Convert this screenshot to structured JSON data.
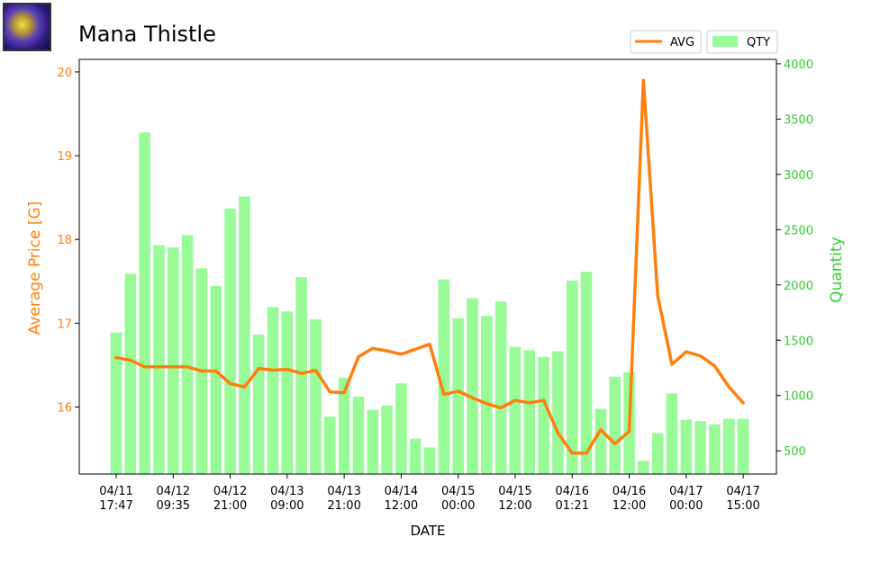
{
  "header": {
    "icon_name": "mana-thistle-item-icon",
    "title": "Mana Thistle"
  },
  "chart_data": {
    "type": "bar",
    "title": "Mana Thistle",
    "xlabel": "DATE",
    "ylabel_left": "Average Price [G]",
    "ylabel_right": "Quantity",
    "ylim_left": [
      15.2,
      20.15
    ],
    "ylim_right": [
      290,
      4040
    ],
    "yticks_left": [
      16,
      17,
      18,
      19,
      20
    ],
    "yticks_right": [
      500,
      1000,
      1500,
      2000,
      2500,
      3000,
      3500,
      4000
    ],
    "xticks": [
      {
        "index": 0,
        "line1": "04/11",
        "line2": "17:47"
      },
      {
        "index": 4,
        "line1": "04/12",
        "line2": "09:35"
      },
      {
        "index": 8,
        "line1": "04/12",
        "line2": "21:00"
      },
      {
        "index": 12,
        "line1": "04/13",
        "line2": "09:00"
      },
      {
        "index": 16,
        "line1": "04/13",
        "line2": "21:00"
      },
      {
        "index": 20,
        "line1": "04/14",
        "line2": "12:00"
      },
      {
        "index": 24,
        "line1": "04/15",
        "line2": "00:00"
      },
      {
        "index": 28,
        "line1": "04/15",
        "line2": "12:00"
      },
      {
        "index": 32,
        "line1": "04/16",
        "line2": "01:21"
      },
      {
        "index": 36,
        "line1": "04/16",
        "line2": "12:00"
      },
      {
        "index": 40,
        "line1": "04/17",
        "line2": "00:00"
      },
      {
        "index": 44,
        "line1": "04/17",
        "line2": "15:00"
      }
    ],
    "series": [
      {
        "name": "AVG",
        "type": "line",
        "color": "#ff7f0e",
        "values": [
          16.59,
          16.56,
          16.48,
          16.48,
          16.48,
          16.48,
          16.43,
          16.43,
          16.28,
          16.24,
          16.46,
          16.44,
          16.45,
          16.4,
          16.44,
          16.18,
          16.17,
          16.6,
          16.7,
          16.67,
          16.63,
          16.69,
          16.75,
          16.15,
          16.19,
          16.11,
          16.04,
          15.99,
          16.08,
          16.05,
          16.08,
          15.69,
          15.45,
          15.45,
          15.73,
          15.56,
          15.71,
          19.9,
          17.33,
          16.51,
          16.66,
          16.61,
          16.49,
          16.24,
          16.05
        ]
      },
      {
        "name": "QTY",
        "type": "bar",
        "color": "#98fb98",
        "values": [
          1570,
          2100,
          3380,
          2360,
          2340,
          2450,
          2150,
          1990,
          2690,
          2800,
          1550,
          1800,
          1760,
          2070,
          1690,
          810,
          1160,
          990,
          870,
          910,
          1110,
          610,
          530,
          2050,
          1700,
          1880,
          1720,
          1850,
          1440,
          1410,
          1350,
          1400,
          2040,
          2120,
          880,
          1170,
          1210,
          410,
          660,
          1020,
          780,
          770,
          740,
          790,
          790
        ]
      }
    ],
    "legend": [
      {
        "label": "AVG",
        "kind": "line",
        "color": "#ff7f0e"
      },
      {
        "label": "QTY",
        "kind": "patch",
        "color": "#98fb98"
      }
    ],
    "legend_placement": "top-right, above plot",
    "colors": {
      "left_axis": "#ff7f0e",
      "right_axis": "#32cd32",
      "bar": "#98fb98",
      "line": "#ff7f0e"
    },
    "grid": false
  }
}
